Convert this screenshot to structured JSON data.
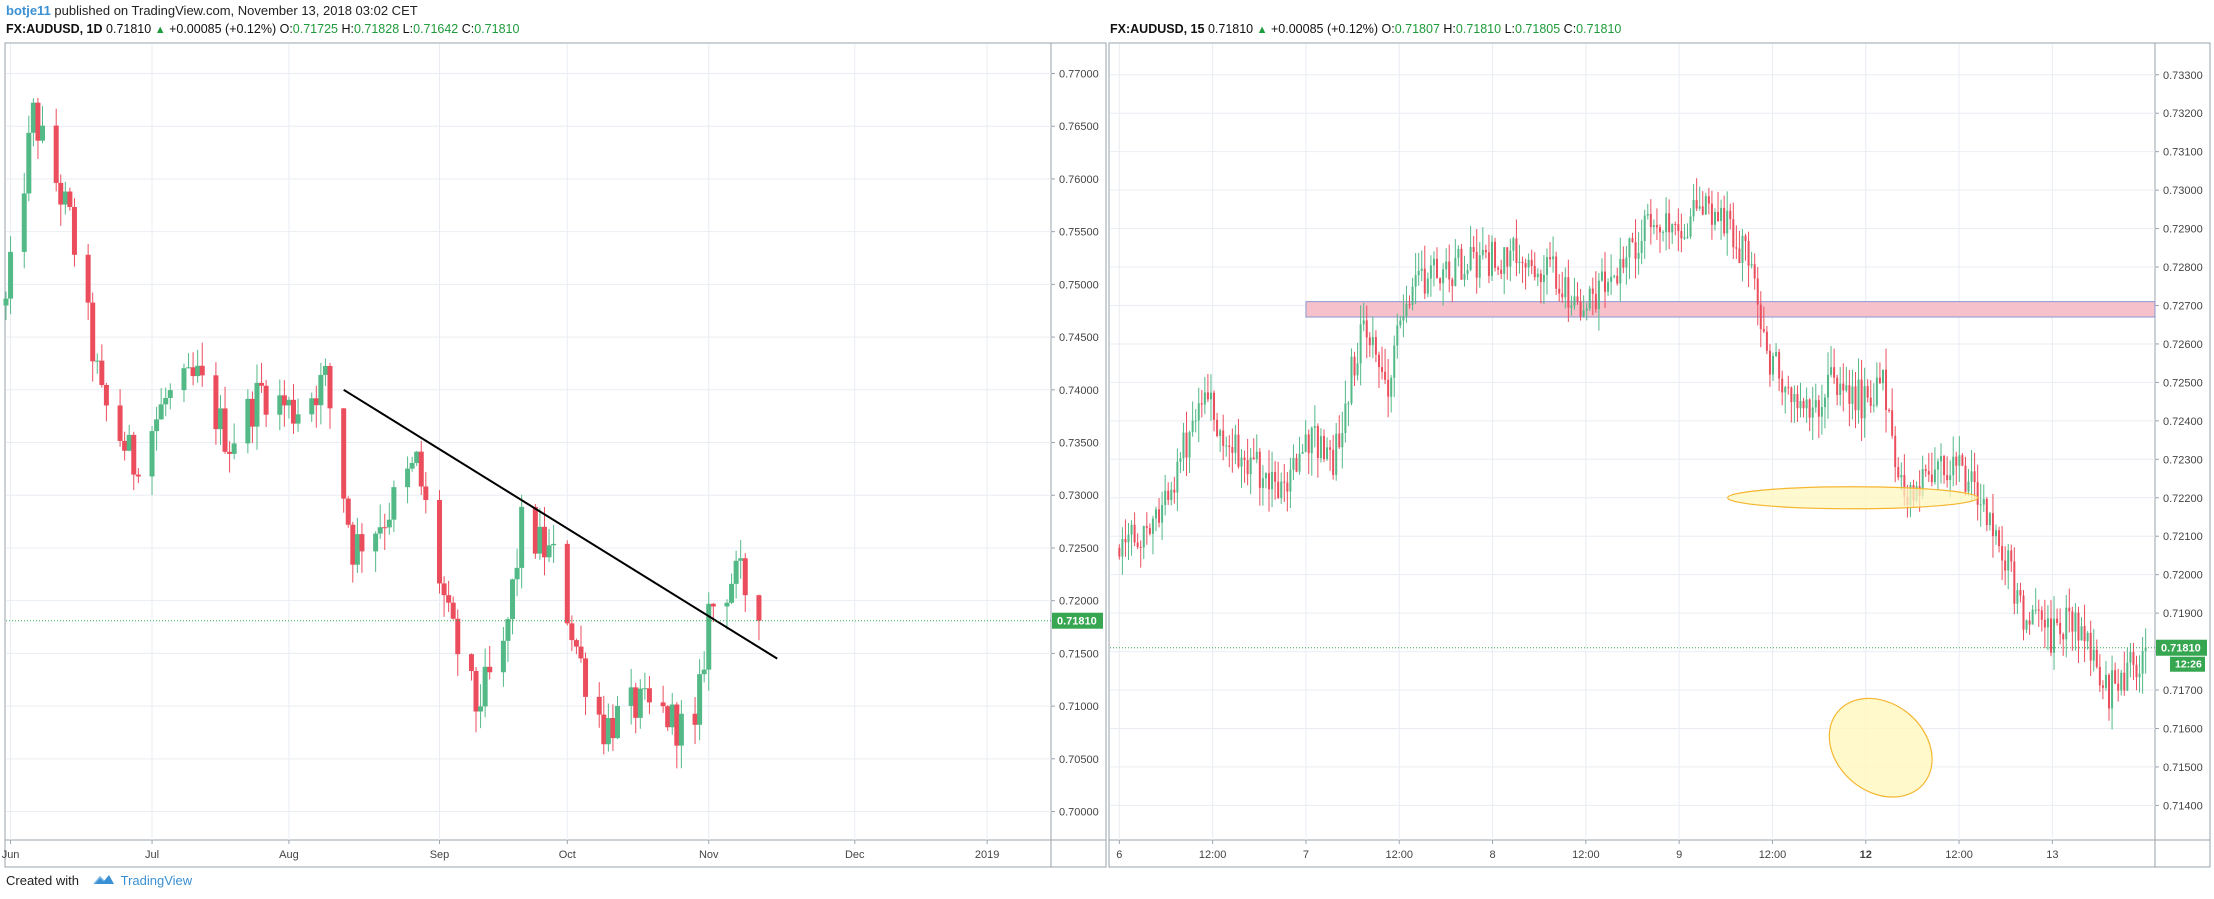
{
  "topbar": {
    "author": "botje11",
    "published_text": "published on TradingView.com, November 13, 2018 03:02 CET"
  },
  "left_header": {
    "symbol": "FX:AUDUSD, 1D",
    "last": "0.71810",
    "change": "+0.00085 (+0.12%)",
    "o_label": "O:",
    "o": "0.71725",
    "h_label": "H:",
    "h": "0.71828",
    "l_label": "L:",
    "l": "0.71642",
    "c_label": "C:",
    "c": "0.71810"
  },
  "right_header": {
    "symbol": "FX:AUDUSD, 15",
    "last": "0.71810",
    "change": "+0.00085 (+0.12%)",
    "o_label": "O:",
    "o": "0.71807",
    "h_label": "H:",
    "h": "0.71810",
    "l_label": "L:",
    "l": "0.71805",
    "c_label": "C:",
    "c": "0.71810"
  },
  "footer": {
    "created_with": "Created with",
    "brand": "TradingView",
    "icon": "tradingview-logo-icon"
  },
  "colors": {
    "up": "#53b987",
    "down": "#eb4d5c",
    "grid": "#e9edf3",
    "axis_text": "#444444",
    "last_price_badge": "#37a651",
    "support_zone_fill": "#f7c1cb",
    "support_zone_stroke": "#8a97cf",
    "ellipse_fill": "#fff7bf",
    "ellipse_stroke": "#f5b630",
    "trendline": "#000000"
  },
  "chart_data": [
    {
      "type": "candlestick",
      "title": "FX:AUDUSD, 1D",
      "y_ticks": [
        "0.77000",
        "0.76500",
        "0.76000",
        "0.75500",
        "0.75000",
        "0.74500",
        "0.74000",
        "0.73500",
        "0.73000",
        "0.72500",
        "0.72000",
        "0.71500",
        "0.71000",
        "0.70500",
        "0.70000"
      ],
      "y_range": [
        0.6973,
        0.7728
      ],
      "x_ticks": [
        "Jun",
        "Jul",
        "Aug",
        "Sep",
        "Oct",
        "Nov",
        "Dec",
        "2019"
      ],
      "x_range": [
        "2018-05-31",
        "2019-01-15"
      ],
      "last_price": "0.71810",
      "trendline": {
        "from": [
          "2018-08-13",
          0.74
        ],
        "to": [
          "2018-11-16",
          0.7145
        ]
      },
      "waypoints": [
        [
          "2018-05-31",
          0.748
        ],
        [
          "2018-06-06",
          0.766
        ],
        [
          "2018-06-14",
          0.756
        ],
        [
          "2018-06-21",
          0.739
        ],
        [
          "2018-06-28",
          0.733
        ],
        [
          "2018-07-05",
          0.739
        ],
        [
          "2018-07-12",
          0.741
        ],
        [
          "2018-07-19",
          0.735
        ],
        [
          "2018-07-26",
          0.74
        ],
        [
          "2018-08-02",
          0.738
        ],
        [
          "2018-08-09",
          0.741
        ],
        [
          "2018-08-15",
          0.725
        ],
        [
          "2018-08-22",
          0.728
        ],
        [
          "2018-08-29",
          0.733
        ],
        [
          "2018-09-05",
          0.718
        ],
        [
          "2018-09-11",
          0.71
        ],
        [
          "2018-09-17",
          0.715
        ],
        [
          "2018-09-21",
          0.727
        ],
        [
          "2018-09-28",
          0.724
        ],
        [
          "2018-10-04",
          0.714
        ],
        [
          "2018-10-09",
          0.708
        ],
        [
          "2018-10-16",
          0.71
        ],
        [
          "2018-10-23",
          0.709
        ],
        [
          "2018-10-29",
          0.707
        ],
        [
          "2018-11-01",
          0.719
        ],
        [
          "2018-11-06",
          0.722
        ],
        [
          "2018-11-08",
          0.722
        ],
        [
          "2018-11-12",
          0.7181
        ]
      ]
    },
    {
      "type": "candlestick",
      "title": "FX:AUDUSD, 15",
      "y_ticks": [
        "0.73300",
        "0.73200",
        "0.73100",
        "0.73000",
        "0.72900",
        "0.72800",
        "0.72700",
        "0.72600",
        "0.72500",
        "0.72400",
        "0.72300",
        "0.72200",
        "0.72100",
        "0.72000",
        "0.71900",
        "0.71800",
        "0.71700",
        "0.71600",
        "0.71500",
        "0.71400"
      ],
      "y_range": [
        0.7131,
        0.7338
      ],
      "x_ticks": [
        "6",
        "12:00",
        "7",
        "12:00",
        "8",
        "12:00",
        "9",
        "12:00",
        "12",
        "12:00",
        "13"
      ],
      "x_unit": "days since Nov 6 00:00",
      "x_range": [
        0,
        5.5
      ],
      "last_price": "0.71810",
      "countdown": "12:26",
      "resistance_zone": [
        0.7267,
        0.7271
      ],
      "annotations": [
        "ellipse near 0.7220 on Nov 9",
        "ellipse near 0.7155 on Nov 12"
      ],
      "waypoints": [
        [
          0.0,
          0.7207
        ],
        [
          0.15,
          0.721
        ],
        [
          0.3,
          0.7225
        ],
        [
          0.45,
          0.725
        ],
        [
          0.55,
          0.7235
        ],
        [
          0.7,
          0.723
        ],
        [
          0.85,
          0.722
        ],
        [
          0.95,
          0.723
        ],
        [
          1.05,
          0.7235
        ],
        [
          1.15,
          0.723
        ],
        [
          1.3,
          0.7265
        ],
        [
          1.45,
          0.725
        ],
        [
          1.55,
          0.7275
        ],
        [
          1.7,
          0.728
        ],
        [
          1.8,
          0.728
        ],
        [
          1.9,
          0.7282
        ],
        [
          2.1,
          0.7283
        ],
        [
          2.3,
          0.728
        ],
        [
          2.5,
          0.7268
        ],
        [
          2.7,
          0.7283
        ],
        [
          2.85,
          0.7291
        ],
        [
          3.0,
          0.7292
        ],
        [
          3.2,
          0.7295
        ],
        [
          3.4,
          0.728
        ],
        [
          3.45,
          0.726
        ],
        [
          3.55,
          0.725
        ],
        [
          3.7,
          0.724
        ],
        [
          3.8,
          0.725
        ],
        [
          4.0,
          0.7245
        ],
        [
          4.1,
          0.725
        ],
        [
          4.2,
          0.722
        ],
        [
          4.4,
          0.723
        ],
        [
          4.55,
          0.7225
        ],
        [
          4.7,
          0.721
        ],
        [
          4.85,
          0.719
        ],
        [
          5.0,
          0.7183
        ],
        [
          5.1,
          0.719
        ],
        [
          5.3,
          0.717
        ],
        [
          5.5,
          0.7181
        ]
      ]
    }
  ]
}
